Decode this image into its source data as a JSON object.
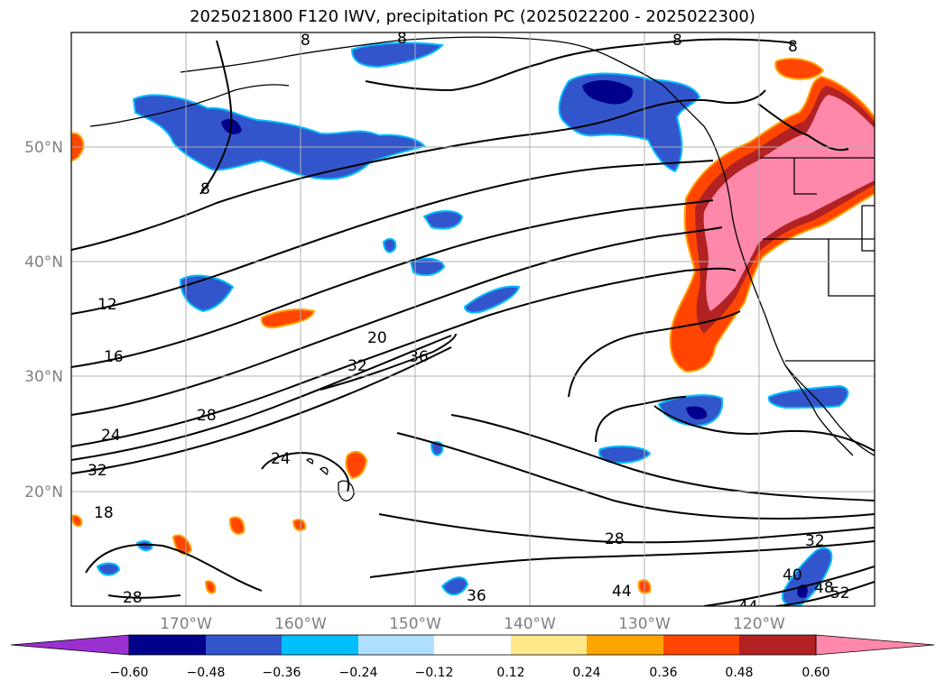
{
  "title": "2025021800 F120 IWV, precipitation PC (2025022200 - 2025022300)",
  "map": {
    "projection": "PlateCarree",
    "lon_range": [
      -180,
      -110
    ],
    "lat_range": [
      10,
      60
    ],
    "gridlines": true,
    "lat_ticks": [
      "50°N",
      "40°N",
      "30°N",
      "20°N"
    ],
    "lon_ticks": [
      "170°W",
      "160°W",
      "150°W",
      "140°W",
      "130°W",
      "120°W"
    ],
    "iwv_contour_labels": [
      "8",
      "8",
      "8",
      "8",
      "8",
      "12",
      "16",
      "20",
      "24",
      "24",
      "28",
      "28",
      "28",
      "32",
      "32",
      "32",
      "36",
      "36",
      "40",
      "44",
      "44",
      "48",
      "52",
      "18"
    ]
  },
  "colorbar": {
    "ticks": [
      "−0.60",
      "−0.48",
      "−0.36",
      "−0.24",
      "−0.12",
      "0.12",
      "0.24",
      "0.36",
      "0.48",
      "0.60"
    ],
    "colors": [
      "#9a30d0",
      "#00008b",
      "#3355cc",
      "#00bfff",
      "#b0e0ff",
      "#ffffff",
      "#ffe88a",
      "#ffa500",
      "#ff4500",
      "#b22222",
      "#ff88aa",
      "#ff88aa"
    ]
  },
  "colors": {
    "pink": "#ff88aa",
    "dark_red": "#b22222",
    "orange_red": "#ff4500",
    "orange": "#ffa500",
    "yellow": "#ffe88a",
    "light_blue": "#b0e0ff",
    "cyan": "#00bfff",
    "blue": "#3355cc",
    "navy": "#00008b",
    "purple": "#9a30d0"
  }
}
